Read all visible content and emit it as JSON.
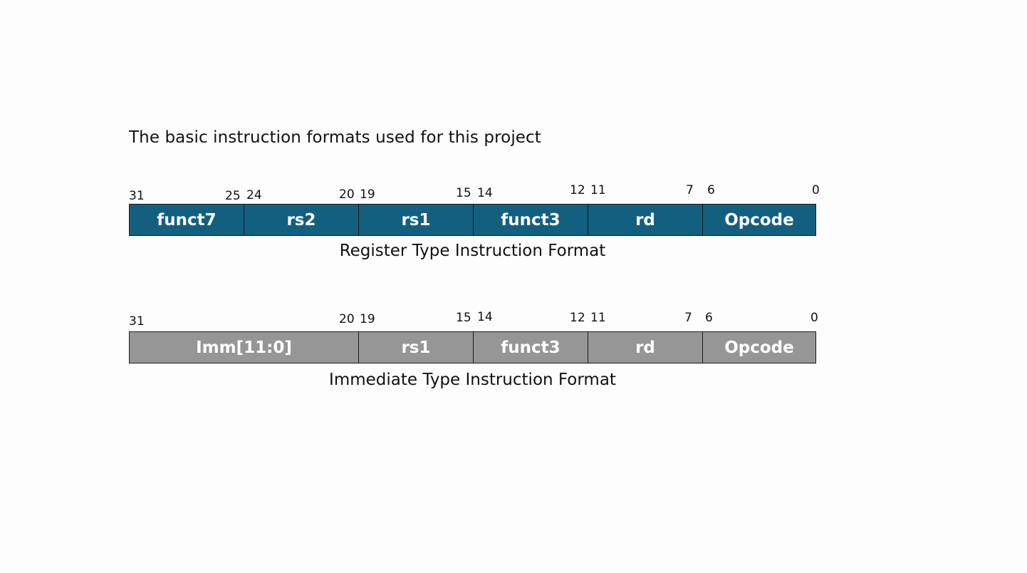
{
  "heading": "The basic instruction formats used for this project",
  "colors": {
    "register_fill": "#135f80",
    "immediate_fill": "#969696",
    "field_text": "#ffffff"
  },
  "formats": [
    {
      "caption": "Register Type Instruction Format",
      "fields": [
        {
          "label": "funct7",
          "msb": "31",
          "lsb": "25"
        },
        {
          "label": "rs2",
          "msb": "24",
          "lsb": "20"
        },
        {
          "label": "rs1",
          "msb": "19",
          "lsb": "15"
        },
        {
          "label": "funct3",
          "msb": "14",
          "lsb": "12"
        },
        {
          "label": "rd",
          "msb": "11",
          "lsb": "7"
        },
        {
          "label": "Opcode",
          "msb": "6",
          "lsb": "0"
        }
      ]
    },
    {
      "caption": "Immediate Type Instruction Format",
      "fields": [
        {
          "label": "Imm[11:0]",
          "msb": "31",
          "lsb": "20"
        },
        {
          "label": "rs1",
          "msb": "19",
          "lsb": "15"
        },
        {
          "label": "funct3",
          "msb": "14",
          "lsb": "12"
        },
        {
          "label": "rd",
          "msb": "11",
          "lsb": "7"
        },
        {
          "label": "Opcode",
          "msb": "6",
          "lsb": "0"
        }
      ]
    }
  ]
}
